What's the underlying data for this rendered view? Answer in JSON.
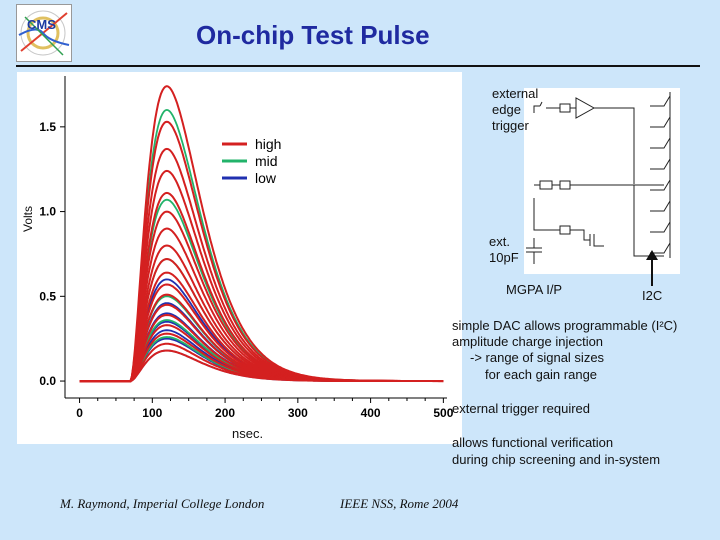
{
  "slide": {
    "title": "On-chip Test Pulse",
    "logo": {
      "icon": "cms-logo-icon",
      "text": "CMS"
    }
  },
  "chart_data": {
    "type": "line",
    "ylabel": "Volts",
    "xlabel": "nsec.",
    "xlim": [
      -20,
      505
    ],
    "ylim": [
      -0.1,
      1.8
    ],
    "x_ticks": [
      "0",
      "100",
      "200",
      "300",
      "400",
      "500"
    ],
    "y_ticks": [
      "0.0",
      "0.5",
      "1.0",
      "1.5"
    ],
    "grid": false,
    "legend_position": "top-right",
    "legend": [
      {
        "name": "high",
        "color": "#d42020"
      },
      {
        "name": "mid",
        "color": "#22b36a"
      },
      {
        "name": "low",
        "color": "#2030b0"
      }
    ],
    "pulse_shape": {
      "onset_ns": 70,
      "peak_ns": 120
    },
    "series": [
      {
        "gain": "high",
        "peak_volts": [
          1.74,
          1.53,
          1.37,
          1.24,
          1.11,
          1.0,
          0.9,
          0.8,
          0.72,
          0.64,
          0.57,
          0.51,
          0.45,
          0.39,
          0.33,
          0.28,
          0.22,
          0.18
        ]
      },
      {
        "gain": "mid",
        "peak_volts": [
          1.6,
          1.07,
          0.72,
          0.5,
          0.36,
          0.26
        ]
      },
      {
        "gain": "low",
        "peak_volts": [
          0.6,
          0.46,
          0.4,
          0.35,
          0.3,
          0.25,
          0.18
        ]
      }
    ]
  },
  "annotations": {
    "external_edge_trigger": [
      "external",
      "edge",
      "trigger"
    ],
    "ext_cap": [
      "ext.",
      "10pF"
    ],
    "mgpa_ip": "MGPA I/P",
    "i2c": "I2C",
    "notes": [
      "simple DAC allows programmable (I²C)",
      "amplitude charge injection",
      "-> range of signal sizes",
      "for each gain range"
    ],
    "trigger_note": "external trigger required",
    "verification_note": [
      "allows functional verification",
      "during chip screening and in-system"
    ]
  },
  "footer": {
    "author": "M. Raymond, Imperial College London",
    "event": "IEEE NSS, Rome 2004"
  }
}
